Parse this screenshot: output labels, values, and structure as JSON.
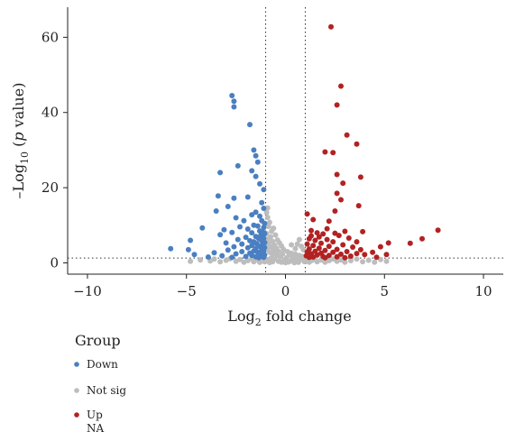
{
  "chart_data": {
    "type": "scatter",
    "xlabel": {
      "base": "Log",
      "sub": "2",
      "rest": " fold change"
    },
    "ylabel": {
      "pre": "–Log",
      "sub": "10",
      "mid": " (",
      "ital": "p",
      "post": " value)"
    },
    "xlim": [
      -11,
      11
    ],
    "ylim": [
      -3,
      68
    ],
    "xticks": [
      "−10",
      "−5",
      "0",
      "5",
      "10"
    ],
    "xtick_values": [
      -10,
      -5,
      0,
      5,
      10
    ],
    "yticks": [
      "0",
      "20",
      "40",
      "60"
    ],
    "ytick_values": [
      0,
      20,
      40,
      60
    ],
    "thresholds": {
      "x": [
        -1,
        1
      ],
      "y": 1.3
    },
    "grid": false,
    "legend": {
      "title": "Group",
      "placement": "bottom-left",
      "entries": [
        {
          "label": "Down",
          "color": "#4a7fc1"
        },
        {
          "label": "Not sig",
          "color": "#bdbdbd"
        },
        {
          "label": "Up",
          "color": "#b22222"
        },
        {
          "label": "NA",
          "color": null
        }
      ]
    },
    "series": [
      {
        "name": "Down",
        "color": "#4a7fc1",
        "points": [
          [
            -2.7,
            44.5
          ],
          [
            -2.6,
            43
          ],
          [
            -2.6,
            41.5
          ],
          [
            -1.8,
            36.8
          ],
          [
            -1.6,
            30
          ],
          [
            -1.5,
            28.5
          ],
          [
            -1.4,
            26.8
          ],
          [
            -1.7,
            24.5
          ],
          [
            -3.3,
            24
          ],
          [
            -2.4,
            25.8
          ],
          [
            -1.5,
            23
          ],
          [
            -1.3,
            21
          ],
          [
            -1.1,
            19.5
          ],
          [
            -1.9,
            17.5
          ],
          [
            -1.2,
            16
          ],
          [
            -3.4,
            17.8
          ],
          [
            -2.6,
            17.2
          ],
          [
            -2.9,
            15
          ],
          [
            -1.1,
            14.5
          ],
          [
            -1.5,
            13.5
          ],
          [
            -1.7,
            12.8
          ],
          [
            -3.5,
            13.8
          ],
          [
            -2.5,
            12
          ],
          [
            -1.3,
            12.4
          ],
          [
            -1.2,
            11.2
          ],
          [
            -1.05,
            10.5
          ],
          [
            -1.6,
            10
          ],
          [
            -2.1,
            11.2
          ],
          [
            -1.4,
            9.8
          ],
          [
            -2.3,
            9.6
          ],
          [
            -1.1,
            9.4
          ],
          [
            -4.2,
            9.3
          ],
          [
            -1.9,
            9
          ],
          [
            -3.1,
            8.8
          ],
          [
            -1.3,
            8.5
          ],
          [
            -1.15,
            8.2
          ],
          [
            -1.7,
            8
          ],
          [
            -2.7,
            8.1
          ],
          [
            -1.05,
            7.8
          ],
          [
            -3.3,
            7.5
          ],
          [
            -1.25,
            7.3
          ],
          [
            -1.5,
            7
          ],
          [
            -2.0,
            6.8
          ],
          [
            -1.1,
            6.6
          ],
          [
            -1.35,
            6.4
          ],
          [
            -2.4,
            6.2
          ],
          [
            -4.8,
            6
          ],
          [
            -1.8,
            5.9
          ],
          [
            -1.2,
            5.8
          ],
          [
            -1.6,
            5.6
          ],
          [
            -1.05,
            5.4
          ],
          [
            -3.0,
            5.3
          ],
          [
            -1.45,
            5.1
          ],
          [
            -2.2,
            5
          ],
          [
            -1.15,
            4.8
          ],
          [
            -1.7,
            4.6
          ],
          [
            -1.3,
            4.4
          ],
          [
            -2.6,
            4.3
          ],
          [
            -1.05,
            4.1
          ],
          [
            -1.9,
            4
          ],
          [
            -5.8,
            3.8
          ],
          [
            -1.5,
            3.8
          ],
          [
            -4.9,
            3.5
          ],
          [
            -1.2,
            3.6
          ],
          [
            -2.9,
            3.4
          ],
          [
            -1.6,
            3.2
          ],
          [
            -1.1,
            3.1
          ],
          [
            -2.2,
            3
          ],
          [
            -1.4,
            2.8
          ],
          [
            -3.6,
            2.7
          ],
          [
            -1.8,
            2.6
          ],
          [
            -1.15,
            2.5
          ],
          [
            -2.5,
            2.4
          ],
          [
            -1.3,
            2.3
          ],
          [
            -4.6,
            2.2
          ],
          [
            -1.05,
            2.1
          ],
          [
            -1.7,
            2
          ],
          [
            -3.2,
            1.9
          ],
          [
            -1.25,
            1.8
          ],
          [
            -2.0,
            1.7
          ],
          [
            -1.5,
            1.6
          ],
          [
            -3.9,
            1.55
          ],
          [
            -1.1,
            1.5
          ],
          [
            -2.7,
            1.45
          ],
          [
            -1.35,
            1.4
          ]
        ]
      },
      {
        "name": "Not sig",
        "color": "#bdbdbd",
        "points": [
          [
            -0.9,
            14.6
          ],
          [
            -0.95,
            13.4
          ],
          [
            -0.9,
            12.1
          ],
          [
            -0.8,
            10.8
          ],
          [
            -0.85,
            9.7
          ],
          [
            -0.6,
            9.2
          ],
          [
            -0.7,
            8.4
          ],
          [
            -0.95,
            7.8
          ],
          [
            -0.5,
            7.4
          ],
          [
            -0.75,
            6.9
          ],
          [
            -0.9,
            6.3
          ],
          [
            -0.4,
            6.1
          ],
          [
            -0.65,
            5.7
          ],
          [
            -0.3,
            5.3
          ],
          [
            -0.85,
            5.1
          ],
          [
            -0.55,
            4.7
          ],
          [
            -0.2,
            4.5
          ],
          [
            -0.7,
            4.2
          ],
          [
            -0.45,
            3.9
          ],
          [
            -0.9,
            3.7
          ],
          [
            -0.1,
            3.6
          ],
          [
            -0.6,
            3.3
          ],
          [
            -0.35,
            3.1
          ],
          [
            0.1,
            3.0
          ],
          [
            -0.8,
            2.8
          ],
          [
            -0.5,
            2.6
          ],
          [
            0.3,
            2.6
          ],
          [
            -0.15,
            2.4
          ],
          [
            0.5,
            2.3
          ],
          [
            -0.65,
            2.2
          ],
          [
            0.2,
            2.1
          ],
          [
            0.7,
            2.0
          ],
          [
            -0.4,
            1.9
          ],
          [
            0.4,
            1.8
          ],
          [
            0.85,
            1.7
          ],
          [
            -0.25,
            1.6
          ],
          [
            0.6,
            1.5
          ],
          [
            0.05,
            1.4
          ],
          [
            0.9,
            1.3
          ],
          [
            -0.75,
            1.2
          ],
          [
            0.35,
            1.1
          ],
          [
            -0.55,
            1.0
          ],
          [
            0.75,
            0.9
          ],
          [
            -0.05,
            0.8
          ],
          [
            0.55,
            0.7
          ],
          [
            -0.9,
            0.6
          ],
          [
            0.25,
            0.5
          ],
          [
            -0.35,
            0.4
          ],
          [
            0.95,
            0.35
          ],
          [
            -0.65,
            0.3
          ],
          [
            0.15,
            0.25
          ],
          [
            -0.2,
            0.2
          ],
          [
            0.65,
            0.15
          ],
          [
            -0.8,
            0.1
          ],
          [
            0.45,
            0.08
          ],
          [
            0.0,
            0.05
          ],
          [
            0.6,
            5.0
          ],
          [
            0.8,
            4.4
          ],
          [
            0.9,
            3.5
          ],
          [
            0.3,
            4.8
          ],
          [
            0.7,
            6.2
          ],
          [
            0.5,
            3.8
          ],
          [
            -4.8,
            0.4
          ],
          [
            -4.3,
            0.8
          ],
          [
            -3.8,
            0.5
          ],
          [
            -3.6,
            1.0
          ],
          [
            -3.3,
            0.3
          ],
          [
            -3.0,
            0.7
          ],
          [
            -2.8,
            1.1
          ],
          [
            -2.5,
            0.4
          ],
          [
            -2.3,
            0.9
          ],
          [
            -2.1,
            0.2
          ],
          [
            -1.9,
            0.6
          ],
          [
            -1.7,
            1.0
          ],
          [
            -1.6,
            0.3
          ],
          [
            -1.4,
            0.8
          ],
          [
            -1.3,
            0.15
          ],
          [
            -1.2,
            0.5
          ],
          [
            -1.1,
            1.0
          ],
          [
            -1.05,
            0.3
          ],
          [
            1.05,
            0.4
          ],
          [
            1.1,
            0.9
          ],
          [
            1.2,
            0.2
          ],
          [
            1.35,
            0.7
          ],
          [
            1.5,
            1.1
          ],
          [
            1.6,
            0.3
          ],
          [
            1.8,
            0.8
          ],
          [
            2.0,
            0.2
          ],
          [
            2.2,
            0.6
          ],
          [
            2.4,
            1.0
          ],
          [
            2.6,
            0.4
          ],
          [
            2.8,
            0.8
          ],
          [
            3.0,
            0.2
          ],
          [
            3.3,
            0.6
          ],
          [
            3.6,
            1.0
          ],
          [
            3.9,
            0.3
          ],
          [
            4.2,
            0.7
          ],
          [
            4.5,
            0.2
          ],
          [
            4.8,
            0.9
          ],
          [
            5.1,
            0.4
          ]
        ]
      },
      {
        "name": "Up",
        "color": "#b22222",
        "points": [
          [
            2.3,
            62.8
          ],
          [
            2.8,
            47
          ],
          [
            2.6,
            42
          ],
          [
            3.1,
            34
          ],
          [
            2.0,
            29.5
          ],
          [
            2.4,
            29.3
          ],
          [
            3.6,
            31.6
          ],
          [
            2.6,
            23.5
          ],
          [
            3.8,
            22.8
          ],
          [
            2.9,
            21.2
          ],
          [
            2.6,
            18.5
          ],
          [
            3.7,
            15.2
          ],
          [
            2.8,
            16.8
          ],
          [
            1.1,
            13
          ],
          [
            2.5,
            13.8
          ],
          [
            1.4,
            11.5
          ],
          [
            2.2,
            11.1
          ],
          [
            3.9,
            8.3
          ],
          [
            7.7,
            8.7
          ],
          [
            6.9,
            6.4
          ],
          [
            6.3,
            5.2
          ],
          [
            5.2,
            5.3
          ],
          [
            4.8,
            4.3
          ],
          [
            4.4,
            2.8
          ],
          [
            5.1,
            2.2
          ],
          [
            3.6,
            5.6
          ],
          [
            3.2,
            6.6
          ],
          [
            2.7,
            7.3
          ],
          [
            1.9,
            7.7
          ],
          [
            1.6,
            8.0
          ],
          [
            1.3,
            7.2
          ],
          [
            1.2,
            6.4
          ],
          [
            1.5,
            6.0
          ],
          [
            2.1,
            6.2
          ],
          [
            2.4,
            5.6
          ],
          [
            1.8,
            5.2
          ],
          [
            1.1,
            5.0
          ],
          [
            2.9,
            4.8
          ],
          [
            1.4,
            4.6
          ],
          [
            2.2,
            4.4
          ],
          [
            3.4,
            4.2
          ],
          [
            1.7,
            3.9
          ],
          [
            1.2,
            3.7
          ],
          [
            2.6,
            3.6
          ],
          [
            3.8,
            3.5
          ],
          [
            2.0,
            3.3
          ],
          [
            1.5,
            3.1
          ],
          [
            3.1,
            3.0
          ],
          [
            1.1,
            2.9
          ],
          [
            2.4,
            2.8
          ],
          [
            1.8,
            2.6
          ],
          [
            3.6,
            2.5
          ],
          [
            1.3,
            2.4
          ],
          [
            2.8,
            2.3
          ],
          [
            4.0,
            2.2
          ],
          [
            1.6,
            2.1
          ],
          [
            2.2,
            2.0
          ],
          [
            1.05,
            1.9
          ],
          [
            3.3,
            1.8
          ],
          [
            1.9,
            1.7
          ],
          [
            2.6,
            1.6
          ],
          [
            1.4,
            1.55
          ],
          [
            4.6,
            1.5
          ],
          [
            1.2,
            1.45
          ],
          [
            3.0,
            1.4
          ],
          [
            2.0,
            1.38
          ],
          [
            1.7,
            6.9
          ],
          [
            2.5,
            7.9
          ],
          [
            3.0,
            8.4
          ],
          [
            1.3,
            8.6
          ],
          [
            2.1,
            9.1
          ]
        ]
      }
    ]
  }
}
